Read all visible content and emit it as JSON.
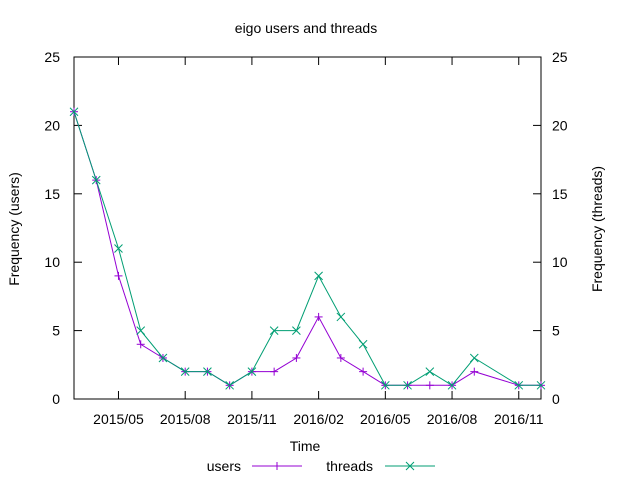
{
  "chart_data": {
    "type": "line",
    "title": "eigo users and threads",
    "xlabel": "Time",
    "ylabel": "Frequency (users)",
    "y2label": "Frequency (threads)",
    "ylim": [
      0,
      25
    ],
    "y2lim": [
      0,
      25
    ],
    "yticks": [
      "0",
      "5",
      "10",
      "15",
      "20",
      "25"
    ],
    "y2ticks": [
      "0",
      "5",
      "10",
      "15",
      "20",
      "25"
    ],
    "xlim": [
      "2015-03",
      "2016-12"
    ],
    "xticks": [
      "2015/05",
      "2015/08",
      "2015/11",
      "2016/02",
      "2016/05",
      "2016/08",
      "2016/11"
    ],
    "grid": false,
    "legend_position": "bottom",
    "x": [
      "2015-03",
      "2015-04",
      "2015-05",
      "2015-06",
      "2015-07",
      "2015-08",
      "2015-09",
      "2015-10",
      "2015-11",
      "2015-12",
      "2016-01",
      "2016-02",
      "2016-03",
      "2016-04",
      "2016-05",
      "2016-06",
      "2016-07",
      "2016-08",
      "2016-09",
      "2016-10",
      "2016-11",
      "2016-12"
    ],
    "series": [
      {
        "name": "users",
        "color": "#9400d3",
        "marker": "plus",
        "values": [
          21,
          16,
          9,
          4,
          3,
          2,
          2,
          1,
          2,
          2,
          3,
          6,
          3,
          2,
          1,
          1,
          1,
          1,
          2,
          null,
          1,
          1
        ]
      },
      {
        "name": "threads",
        "color": "#009e73",
        "marker": "cross",
        "values": [
          21,
          16,
          11,
          5,
          3,
          2,
          2,
          1,
          2,
          5,
          5,
          9,
          6,
          4,
          1,
          1,
          2,
          1,
          3,
          null,
          1,
          1
        ]
      }
    ]
  }
}
